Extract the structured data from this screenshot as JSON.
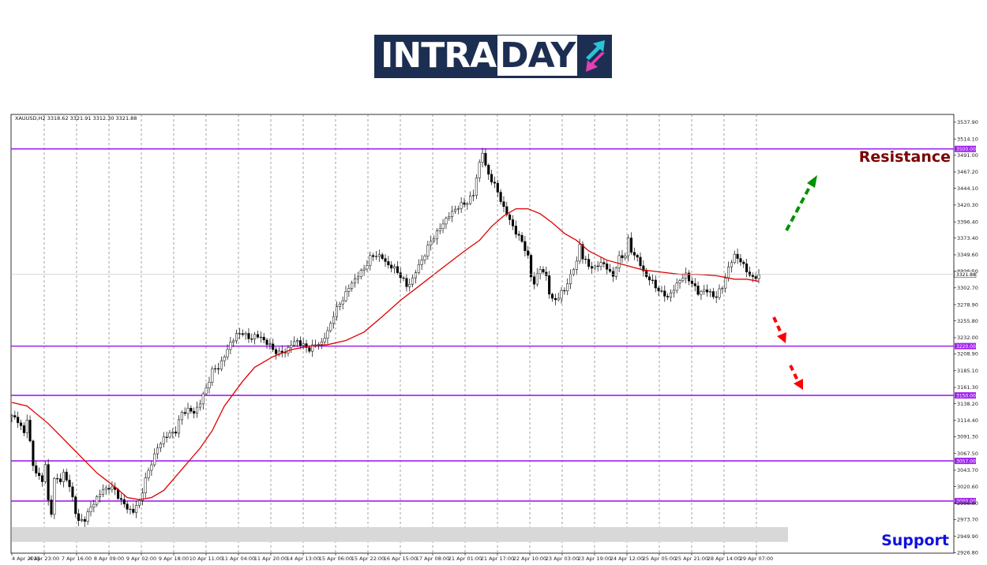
{
  "logo": {
    "text_a": "INTRA",
    "text_b": "DAY"
  },
  "chart_data": {
    "type": "candlestick",
    "symbol_info": "XAUUSD,H2  3318.62 3321.91 3312.30 3321.88",
    "current_price": "3321.88",
    "ylim": [
      2926,
      3549
    ],
    "y_ticks": [
      "3537.90",
      "3514.10",
      "3491.00",
      "3467.20",
      "3444.10",
      "3420.30",
      "3396.40",
      "3373.40",
      "3349.60",
      "3326.50",
      "3302.70",
      "3278.90",
      "3255.80",
      "3232.00",
      "3208.90",
      "3185.10",
      "3161.30",
      "3138.20",
      "3114.40",
      "3091.30",
      "3067.50",
      "3043.70",
      "3020.60",
      "2996.80",
      "2973.70",
      "2949.90",
      "2926.80"
    ],
    "x_ticks": [
      "4 Apr 2025",
      "4 Apr 23:00",
      "7 Apr 16:00",
      "8 Apr 09:00",
      "9 Apr 02:00",
      "9 Apr 18:00",
      "10 Apr 11:00",
      "11 Apr 04:00",
      "11 Apr 20:00",
      "14 Apr 13:00",
      "15 Apr 06:00",
      "15 Apr 22:00",
      "16 Apr 15:00",
      "17 Apr 08:00",
      "21 Apr 01:00",
      "21 Apr 17:00",
      "22 Apr 10:00",
      "23 Apr 03:00",
      "23 Apr 19:00",
      "24 Apr 12:00",
      "25 Apr 05:00",
      "25 Apr 21:00",
      "28 Apr 14:00",
      "29 Apr 07:00"
    ],
    "levels": [
      {
        "label": "3500.00",
        "value": 3500
      },
      {
        "label": "3220.00",
        "value": 3220
      },
      {
        "label": "3150.00",
        "value": 3150
      },
      {
        "label": "3057.00",
        "value": 3057
      },
      {
        "label": "3000.00",
        "value": 3000
      }
    ],
    "support_zone": [
      2942,
      2963
    ],
    "close_path": [
      [
        0,
        3120
      ],
      [
        2,
        3115
      ],
      [
        4,
        3095
      ],
      [
        5,
        3118
      ],
      [
        7,
        3050
      ],
      [
        8,
        3040
      ],
      [
        10,
        3030
      ],
      [
        11,
        3050
      ],
      [
        12,
        3000
      ],
      [
        13,
        2985
      ],
      [
        14,
        3030
      ],
      [
        16,
        3030
      ],
      [
        17,
        3040
      ],
      [
        19,
        3020
      ],
      [
        20,
        3005
      ],
      [
        21,
        2985
      ],
      [
        22,
        2970
      ],
      [
        24,
        2975
      ],
      [
        26,
        2990
      ],
      [
        28,
        3005
      ],
      [
        30,
        3015
      ],
      [
        32,
        3020
      ],
      [
        34,
        3015
      ],
      [
        36,
        3000
      ],
      [
        38,
        2990
      ],
      [
        40,
        2985
      ],
      [
        42,
        3000
      ],
      [
        44,
        3030
      ],
      [
        46,
        3055
      ],
      [
        48,
        3075
      ],
      [
        50,
        3090
      ],
      [
        52,
        3095
      ],
      [
        54,
        3100
      ],
      [
        56,
        3125
      ],
      [
        58,
        3130
      ],
      [
        60,
        3125
      ],
      [
        62,
        3140
      ],
      [
        64,
        3160
      ],
      [
        66,
        3185
      ],
      [
        68,
        3190
      ],
      [
        70,
        3205
      ],
      [
        72,
        3225
      ],
      [
        74,
        3235
      ],
      [
        76,
        3240
      ],
      [
        78,
        3230
      ],
      [
        80,
        3235
      ],
      [
        82,
        3232
      ],
      [
        84,
        3225
      ],
      [
        86,
        3215
      ],
      [
        88,
        3210
      ],
      [
        90,
        3212
      ],
      [
        92,
        3222
      ],
      [
        94,
        3228
      ],
      [
        96,
        3220
      ],
      [
        98,
        3216
      ],
      [
        100,
        3222
      ],
      [
        102,
        3225
      ],
      [
        104,
        3240
      ],
      [
        106,
        3265
      ],
      [
        108,
        3280
      ],
      [
        110,
        3295
      ],
      [
        112,
        3310
      ],
      [
        114,
        3320
      ],
      [
        116,
        3330
      ],
      [
        118,
        3345
      ],
      [
        120,
        3350
      ],
      [
        122,
        3345
      ],
      [
        124,
        3335
      ],
      [
        126,
        3330
      ],
      [
        128,
        3320
      ],
      [
        130,
        3305
      ],
      [
        132,
        3315
      ],
      [
        134,
        3335
      ],
      [
        136,
        3350
      ],
      [
        138,
        3370
      ],
      [
        140,
        3380
      ],
      [
        142,
        3395
      ],
      [
        144,
        3405
      ],
      [
        146,
        3415
      ],
      [
        148,
        3420
      ],
      [
        150,
        3425
      ],
      [
        152,
        3435
      ],
      [
        153,
        3460
      ],
      [
        154,
        3480
      ],
      [
        155,
        3495
      ],
      [
        156,
        3475
      ],
      [
        158,
        3455
      ],
      [
        160,
        3440
      ],
      [
        162,
        3415
      ],
      [
        164,
        3400
      ],
      [
        166,
        3380
      ],
      [
        168,
        3370
      ],
      [
        170,
        3345
      ],
      [
        171,
        3320
      ],
      [
        172,
        3310
      ],
      [
        174,
        3330
      ],
      [
        176,
        3320
      ],
      [
        177,
        3295
      ],
      [
        178,
        3285
      ],
      [
        180,
        3290
      ],
      [
        182,
        3300
      ],
      [
        184,
        3320
      ],
      [
        186,
        3340
      ],
      [
        187,
        3365
      ],
      [
        188,
        3345
      ],
      [
        190,
        3335
      ],
      [
        192,
        3330
      ],
      [
        194,
        3340
      ],
      [
        196,
        3330
      ],
      [
        198,
        3320
      ],
      [
        200,
        3345
      ],
      [
        202,
        3350
      ],
      [
        203,
        3370
      ],
      [
        204,
        3355
      ],
      [
        206,
        3345
      ],
      [
        208,
        3325
      ],
      [
        210,
        3315
      ],
      [
        212,
        3305
      ],
      [
        214,
        3295
      ],
      [
        216,
        3290
      ],
      [
        218,
        3300
      ],
      [
        220,
        3315
      ],
      [
        222,
        3320
      ],
      [
        224,
        3310
      ],
      [
        226,
        3295
      ],
      [
        228,
        3300
      ],
      [
        230,
        3295
      ],
      [
        232,
        3290
      ],
      [
        234,
        3305
      ],
      [
        236,
        3330
      ],
      [
        238,
        3350
      ],
      [
        240,
        3340
      ],
      [
        242,
        3328
      ],
      [
        244,
        3315
      ],
      [
        246,
        3322
      ]
    ],
    "ma_path": [
      [
        0,
        3140
      ],
      [
        5,
        3135
      ],
      [
        12,
        3110
      ],
      [
        20,
        3075
      ],
      [
        28,
        3040
      ],
      [
        34,
        3020
      ],
      [
        38,
        3005
      ],
      [
        42,
        3002
      ],
      [
        46,
        3005
      ],
      [
        50,
        3015
      ],
      [
        56,
        3045
      ],
      [
        62,
        3075
      ],
      [
        66,
        3100
      ],
      [
        70,
        3135
      ],
      [
        76,
        3170
      ],
      [
        80,
        3190
      ],
      [
        86,
        3205
      ],
      [
        92,
        3215
      ],
      [
        98,
        3220
      ],
      [
        104,
        3222
      ],
      [
        110,
        3228
      ],
      [
        116,
        3240
      ],
      [
        122,
        3262
      ],
      [
        128,
        3285
      ],
      [
        134,
        3305
      ],
      [
        140,
        3325
      ],
      [
        146,
        3345
      ],
      [
        150,
        3358
      ],
      [
        154,
        3370
      ],
      [
        158,
        3390
      ],
      [
        162,
        3405
      ],
      [
        166,
        3415
      ],
      [
        170,
        3415
      ],
      [
        174,
        3408
      ],
      [
        178,
        3395
      ],
      [
        182,
        3380
      ],
      [
        186,
        3370
      ],
      [
        190,
        3355
      ],
      [
        196,
        3342
      ],
      [
        202,
        3335
      ],
      [
        208,
        3328
      ],
      [
        214,
        3325
      ],
      [
        220,
        3322
      ],
      [
        226,
        3322
      ],
      [
        232,
        3320
      ],
      [
        238,
        3315
      ],
      [
        242,
        3315
      ],
      [
        246,
        3312
      ]
    ],
    "colors": {
      "level": "#a020f0",
      "ma": "#e00000",
      "arrow_up": "#009000",
      "arrow_down": "#ff0000",
      "resistance": "#7a0000",
      "support": "#1010e0"
    }
  },
  "annotations": {
    "resistance": "Resistance",
    "support": "Support"
  }
}
